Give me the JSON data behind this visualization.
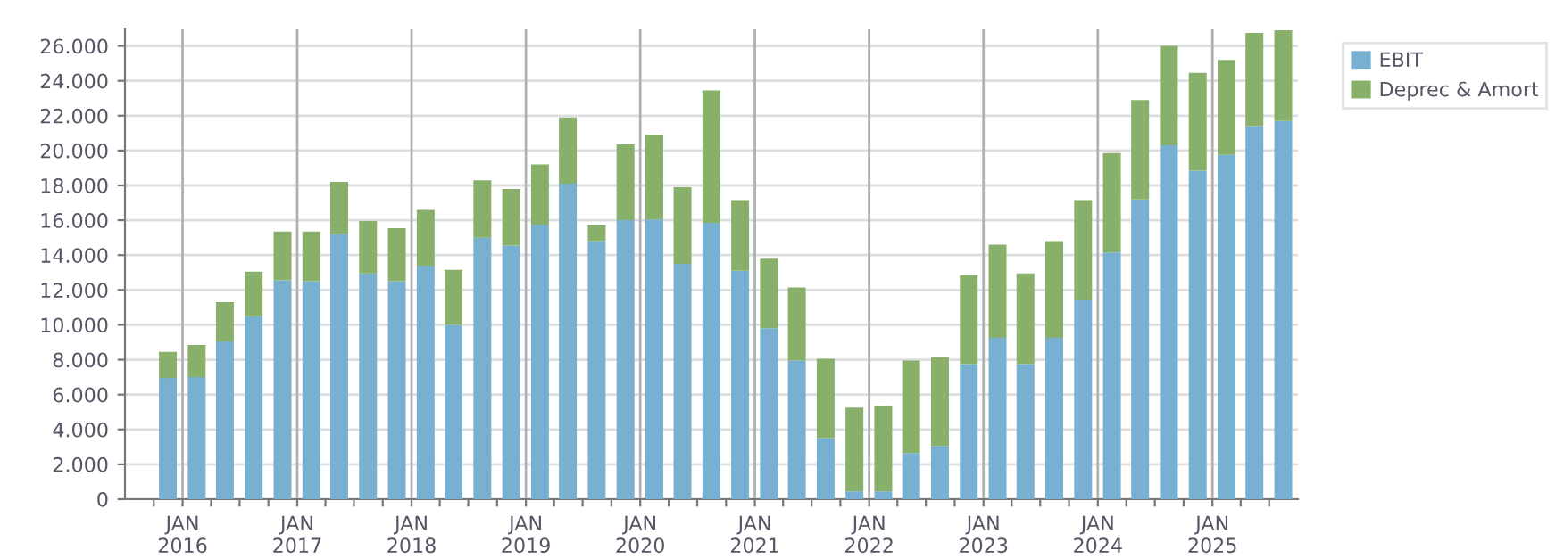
{
  "chart_data": {
    "type": "bar",
    "stacked": true,
    "x": [
      "2015-11-15",
      "2016-02-15",
      "2016-05-15",
      "2016-08-15",
      "2016-11-15",
      "2017-02-15",
      "2017-05-15",
      "2017-08-15",
      "2017-11-15",
      "2018-02-15",
      "2018-05-15",
      "2018-08-15",
      "2018-11-15",
      "2019-02-15",
      "2019-05-15",
      "2019-08-15",
      "2019-11-15",
      "2020-02-15",
      "2020-05-15",
      "2020-08-15",
      "2020-11-15",
      "2021-02-15",
      "2021-05-15",
      "2021-08-15",
      "2021-11-15",
      "2022-02-15",
      "2022-05-15",
      "2022-08-15",
      "2022-11-15",
      "2023-02-15",
      "2023-05-15",
      "2023-08-15",
      "2023-11-15",
      "2024-02-15",
      "2024-05-15",
      "2024-08-15",
      "2024-11-15",
      "2025-02-15",
      "2025-05-15",
      "2025-08-15"
    ],
    "series": [
      {
        "name": "EBIT",
        "color": "#77b0d1",
        "values": [
          6950,
          7000,
          9050,
          10500,
          12550,
          12500,
          15200,
          12950,
          12500,
          13400,
          10000,
          15000,
          14550,
          15750,
          18100,
          14800,
          16000,
          16050,
          13500,
          15850,
          13100,
          9800,
          7950,
          3500,
          450,
          450,
          2650,
          3050,
          7750,
          9250,
          7750,
          9250,
          11450,
          14150,
          17200,
          20300,
          18850,
          19750,
          21400,
          21700
        ]
      },
      {
        "name": "Deprec & Amort",
        "color": "#88b06a",
        "values": [
          1500,
          1850,
          2250,
          2550,
          2800,
          2850,
          3000,
          3000,
          3050,
          3200,
          3150,
          3300,
          3250,
          3450,
          3800,
          950,
          4350,
          4850,
          4400,
          7600,
          4050,
          4000,
          4200,
          4550,
          4800,
          4900,
          5300,
          5100,
          5100,
          5350,
          5200,
          5550,
          5700,
          5700,
          5700,
          5700,
          5600,
          5450,
          5350,
          5200
        ]
      }
    ],
    "ylim": [
      0,
      27000
    ],
    "yticks": [
      0,
      {
        "value": 2000,
        "label": "2.000"
      },
      {
        "value": 4000,
        "label": "4.000"
      },
      {
        "value": 6000,
        "label": "6.000"
      },
      {
        "value": 8000,
        "label": "8.000"
      },
      {
        "value": 10000,
        "label": "10.000"
      },
      {
        "value": 12000,
        "label": "12.000"
      },
      {
        "value": 14000,
        "label": "14.000"
      },
      {
        "value": 16000,
        "label": "16.000"
      },
      {
        "value": 18000,
        "label": "18.000"
      },
      {
        "value": 20000,
        "label": "20.000"
      },
      {
        "value": 22000,
        "label": "22.000"
      },
      {
        "value": 24000,
        "label": "24.000"
      },
      {
        "value": 26000,
        "label": "26.000"
      }
    ],
    "xlim": [
      "2015-07-01",
      "2025-10-01"
    ],
    "xticks": [
      {
        "value": "2015-10-01",
        "label": null
      },
      {
        "value": "2016-01-01",
        "label": "JAN\n2016"
      },
      {
        "value": "2016-04-01",
        "label": null
      },
      {
        "value": "2016-07-01",
        "label": null
      },
      {
        "value": "2016-10-01",
        "label": null
      },
      {
        "value": "2017-01-01",
        "label": "JAN\n2017"
      },
      {
        "value": "2017-04-01",
        "label": null
      },
      {
        "value": "2017-07-01",
        "label": null
      },
      {
        "value": "2017-10-01",
        "label": null
      },
      {
        "value": "2018-01-01",
        "label": "JAN\n2018"
      },
      {
        "value": "2018-04-01",
        "label": null
      },
      {
        "value": "2018-07-01",
        "label": null
      },
      {
        "value": "2018-10-01",
        "label": null
      },
      {
        "value": "2019-01-01",
        "label": "JAN\n2019"
      },
      {
        "value": "2019-04-01",
        "label": null
      },
      {
        "value": "2019-07-01",
        "label": null
      },
      {
        "value": "2019-10-01",
        "label": null
      },
      {
        "value": "2020-01-01",
        "label": "JAN\n2020"
      },
      {
        "value": "2020-04-01",
        "label": null
      },
      {
        "value": "2020-07-01",
        "label": null
      },
      {
        "value": "2020-10-01",
        "label": null
      },
      {
        "value": "2021-01-01",
        "label": "JAN\n2021"
      },
      {
        "value": "2021-04-01",
        "label": null
      },
      {
        "value": "2021-07-01",
        "label": null
      },
      {
        "value": "2021-10-01",
        "label": null
      },
      {
        "value": "2022-01-01",
        "label": "JAN\n2022"
      },
      {
        "value": "2022-04-01",
        "label": null
      },
      {
        "value": "2022-07-01",
        "label": null
      },
      {
        "value": "2022-10-01",
        "label": null
      },
      {
        "value": "2023-01-01",
        "label": "JAN\n2023"
      },
      {
        "value": "2023-04-01",
        "label": null
      },
      {
        "value": "2023-07-01",
        "label": null
      },
      {
        "value": "2023-10-01",
        "label": null
      },
      {
        "value": "2024-01-01",
        "label": "JAN\n2024"
      },
      {
        "value": "2024-04-01",
        "label": null
      },
      {
        "value": "2024-07-01",
        "label": null
      },
      {
        "value": "2024-10-01",
        "label": null
      },
      {
        "value": "2025-01-01",
        "label": "JAN\n2025"
      },
      {
        "value": "2025-04-01",
        "label": null
      },
      {
        "value": "2025-07-01",
        "label": null
      }
    ],
    "grid": true,
    "legend": "top right"
  }
}
